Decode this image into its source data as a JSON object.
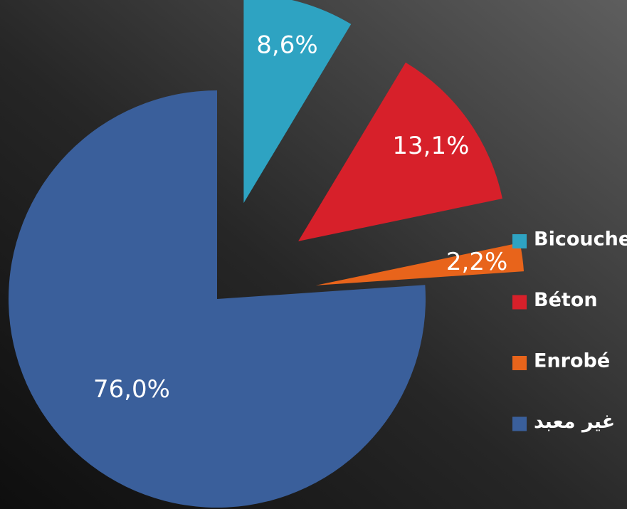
{
  "chart_data": {
    "type": "pie",
    "categories": [
      "Bicouche",
      "Béton",
      "Enrobé",
      "غير معبد"
    ],
    "values": [
      8.6,
      13.1,
      2.2,
      76.0
    ],
    "value_labels": [
      "8,6%",
      "13,1%",
      "2,2%",
      "76,0%"
    ],
    "colors": [
      "#2ea3c2",
      "#d7202a",
      "#e8641b",
      "#3a5f9b"
    ],
    "legend": "right"
  }
}
